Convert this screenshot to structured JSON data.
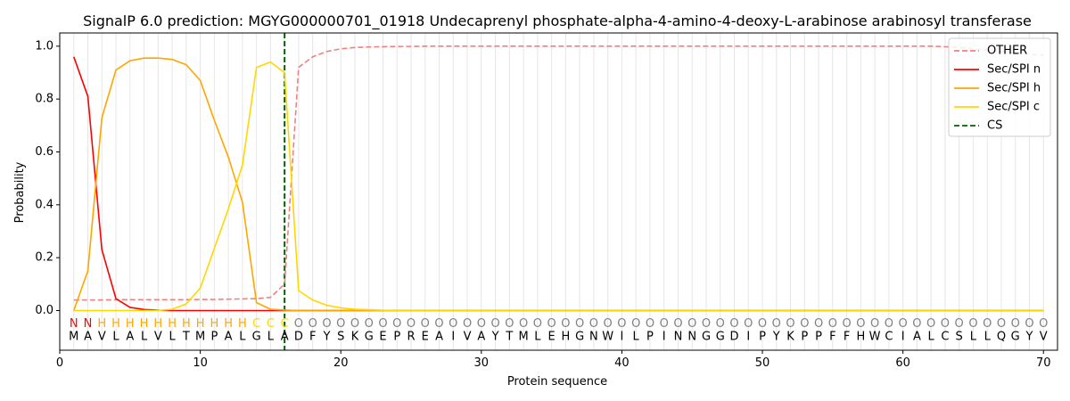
{
  "chart_data": {
    "type": "line",
    "title": "SignalP 6.0 prediction: MGYG000000701_01918 Undecaprenyl phosphate-alpha-4-amino-4-deoxy-L-arabinose arabinosyl transferase",
    "xlabel": "Protein sequence",
    "ylabel": "Probability",
    "xlim": [
      0,
      71
    ],
    "ylim": [
      -0.15,
      1.05
    ],
    "x_ticks": [
      0,
      10,
      20,
      30,
      40,
      50,
      60,
      70
    ],
    "y_ticks": [
      0.0,
      0.2,
      0.4,
      0.6,
      0.8,
      1.0
    ],
    "x_tick_labels": [
      "0",
      "10",
      "20",
      "30",
      "40",
      "50",
      "60",
      "70"
    ],
    "y_tick_labels": [
      "0.0",
      "0.2",
      "0.4",
      "0.6",
      "0.8",
      "1.0"
    ],
    "grid": "vertical lines at each residue",
    "legend_position": "top-right",
    "sequence": [
      "M",
      "A",
      "V",
      "L",
      "A",
      "L",
      "V",
      "L",
      "T",
      "M",
      "P",
      "A",
      "L",
      "G",
      "L",
      "A",
      "D",
      "F",
      "Y",
      "S",
      "K",
      "G",
      "E",
      "P",
      "R",
      "E",
      "A",
      "I",
      "V",
      "A",
      "Y",
      "T",
      "M",
      "L",
      "E",
      "H",
      "G",
      "N",
      "W",
      "I",
      "L",
      "P",
      "I",
      "N",
      "N",
      "G",
      "G",
      "D",
      "I",
      "P",
      "Y",
      "K",
      "P",
      "P",
      "F",
      "F",
      "H",
      "W",
      "C",
      "I",
      "A",
      "L",
      "C",
      "S",
      "L",
      "L",
      "Q",
      "G",
      "Y",
      "V"
    ],
    "labels": [
      "N",
      "N",
      "H",
      "H",
      "H",
      "H",
      "H",
      "H",
      "H",
      "H",
      "H",
      "H",
      "H",
      "C",
      "C",
      "C",
      "O",
      "O",
      "O",
      "O",
      "O",
      "O",
      "O",
      "O",
      "O",
      "O",
      "O",
      "O",
      "O",
      "O",
      "O",
      "O",
      "O",
      "O",
      "O",
      "O",
      "O",
      "O",
      "O",
      "O",
      "O",
      "O",
      "O",
      "O",
      "O",
      "O",
      "O",
      "O",
      "O",
      "O",
      "O",
      "O",
      "O",
      "O",
      "O",
      "O",
      "O",
      "O",
      "O",
      "O",
      "O",
      "O",
      "O",
      "O",
      "O",
      "O",
      "O",
      "O",
      "O",
      "O"
    ],
    "label_colors": {
      "N": "#ff0000",
      "H": "#ffa500",
      "C": "#ffd700",
      "O": "#808080"
    },
    "cleavage_site": 16,
    "series": [
      {
        "name": "OTHER",
        "color": "#f08080",
        "dash": true,
        "values": [
          0.04,
          0.04,
          0.04,
          0.041,
          0.041,
          0.041,
          0.041,
          0.041,
          0.041,
          0.042,
          0.042,
          0.043,
          0.044,
          0.045,
          0.05,
          0.1,
          0.92,
          0.96,
          0.98,
          0.99,
          0.995,
          0.997,
          0.998,
          0.999,
          0.999,
          1.0,
          1.0,
          1.0,
          1.0,
          1.0,
          1.0,
          1.0,
          1.0,
          1.0,
          1.0,
          1.0,
          1.0,
          1.0,
          1.0,
          1.0,
          1.0,
          1.0,
          1.0,
          1.0,
          1.0,
          1.0,
          1.0,
          1.0,
          1.0,
          1.0,
          1.0,
          1.0,
          1.0,
          1.0,
          1.0,
          1.0,
          1.0,
          1.0,
          1.0,
          1.0,
          1.0,
          1.0,
          0.998,
          0.995,
          0.99,
          0.985,
          0.98,
          0.975,
          0.97,
          0.965
        ]
      },
      {
        "name": "Sec/SPI n",
        "color": "#ff0000",
        "dash": false,
        "values": [
          0.96,
          0.81,
          0.23,
          0.045,
          0.012,
          0.004,
          0.001,
          0.0,
          0.0,
          0.0,
          0.0,
          0.0,
          0.0,
          0.0,
          0.0,
          0.0,
          0.0,
          0.0,
          0.0,
          0.0,
          0.0,
          0.0,
          0.0,
          0.0,
          0.0,
          0.0,
          0.0,
          0.0,
          0.0,
          0.0,
          0.0,
          0.0,
          0.0,
          0.0,
          0.0,
          0.0,
          0.0,
          0.0,
          0.0,
          0.0,
          0.0,
          0.0,
          0.0,
          0.0,
          0.0,
          0.0,
          0.0,
          0.0,
          0.0,
          0.0,
          0.0,
          0.0,
          0.0,
          0.0,
          0.0,
          0.0,
          0.0,
          0.0,
          0.0,
          0.0,
          0.0,
          0.0,
          0.0,
          0.0,
          0.0,
          0.0,
          0.0,
          0.0,
          0.0,
          0.0
        ]
      },
      {
        "name": "Sec/SPI h",
        "color": "#ffa500",
        "dash": false,
        "values": [
          0.0,
          0.15,
          0.73,
          0.91,
          0.945,
          0.955,
          0.955,
          0.95,
          0.93,
          0.87,
          0.72,
          0.58,
          0.41,
          0.03,
          0.005,
          0.002,
          0.0,
          0.0,
          0.0,
          0.0,
          0.0,
          0.0,
          0.0,
          0.0,
          0.0,
          0.0,
          0.0,
          0.0,
          0.0,
          0.0,
          0.0,
          0.0,
          0.0,
          0.0,
          0.0,
          0.0,
          0.0,
          0.0,
          0.0,
          0.0,
          0.0,
          0.0,
          0.0,
          0.0,
          0.0,
          0.0,
          0.0,
          0.0,
          0.0,
          0.0,
          0.0,
          0.0,
          0.0,
          0.0,
          0.0,
          0.0,
          0.0,
          0.0,
          0.0,
          0.0,
          0.0,
          0.0,
          0.0,
          0.0,
          0.0,
          0.0,
          0.0,
          0.0,
          0.0,
          0.0
        ]
      },
      {
        "name": "Sec/SPI c",
        "color": "#ffd700",
        "dash": false,
        "values": [
          0.0,
          0.0,
          0.0,
          0.0,
          0.0,
          0.0,
          0.0,
          0.005,
          0.025,
          0.085,
          0.235,
          0.385,
          0.55,
          0.92,
          0.94,
          0.9,
          0.075,
          0.04,
          0.02,
          0.01,
          0.005,
          0.003,
          0.001,
          0.0,
          0.0,
          0.0,
          0.0,
          0.0,
          0.0,
          0.0,
          0.0,
          0.0,
          0.0,
          0.0,
          0.0,
          0.0,
          0.0,
          0.0,
          0.0,
          0.0,
          0.0,
          0.0,
          0.0,
          0.0,
          0.0,
          0.0,
          0.0,
          0.0,
          0.0,
          0.0,
          0.0,
          0.0,
          0.0,
          0.0,
          0.0,
          0.0,
          0.0,
          0.0,
          0.0,
          0.0,
          0.0,
          0.0,
          0.0,
          0.0,
          0.0,
          0.0,
          0.0,
          0.0,
          0.0,
          0.0
        ]
      }
    ],
    "legend": [
      {
        "name": "OTHER",
        "color": "#f08080",
        "dash": true
      },
      {
        "name": "Sec/SPI n",
        "color": "#ff0000",
        "dash": false
      },
      {
        "name": "Sec/SPI h",
        "color": "#ffa500",
        "dash": false
      },
      {
        "name": "Sec/SPI c",
        "color": "#ffd700",
        "dash": false
      },
      {
        "name": "CS",
        "color": "#006400",
        "dash": true
      }
    ]
  }
}
